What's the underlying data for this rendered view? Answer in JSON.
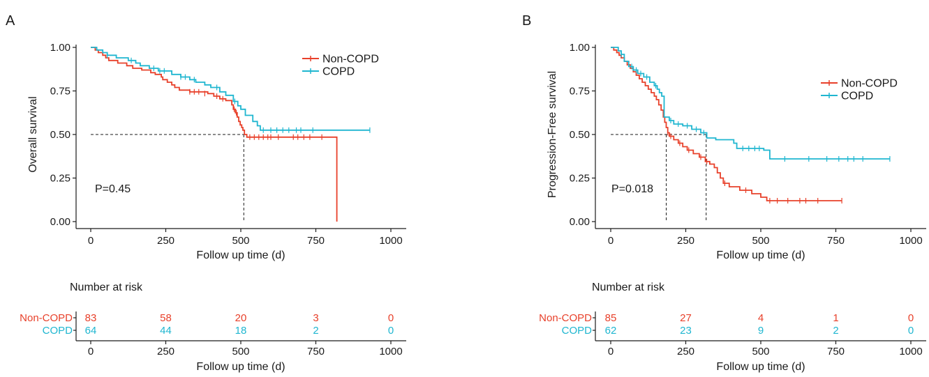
{
  "colors": {
    "non_copd": "#E8402A",
    "copd": "#1FB6D0",
    "axis": "#1a1a1a"
  },
  "chart_data": [
    {
      "type": "line",
      "subtype": "kaplan-meier",
      "panel_label": "A",
      "xlabel": "Follow up time (d)",
      "ylabel": "Overall survival",
      "xlim": [
        0,
        1000
      ],
      "ylim": [
        0,
        1
      ],
      "xticks": [
        "0",
        "250",
        "500",
        "750",
        "1000"
      ],
      "yticks": [
        "0.00",
        "0.25",
        "0.50",
        "0.75",
        "1.00"
      ],
      "grid": false,
      "legend_position": "top-right",
      "annotation": "P=0.45",
      "median_lines": [
        510
      ],
      "series": [
        {
          "name": "Non-COPD",
          "color": "#E8402A",
          "steps": [
            [
              0,
              1.0
            ],
            [
              15,
              0.985
            ],
            [
              25,
              0.97
            ],
            [
              40,
              0.955
            ],
            [
              50,
              0.94
            ],
            [
              60,
              0.925
            ],
            [
              90,
              0.91
            ],
            [
              120,
              0.895
            ],
            [
              140,
              0.88
            ],
            [
              170,
              0.87
            ],
            [
              200,
              0.855
            ],
            [
              215,
              0.845
            ],
            [
              235,
              0.83
            ],
            [
              240,
              0.815
            ],
            [
              255,
              0.8
            ],
            [
              270,
              0.785
            ],
            [
              280,
              0.77
            ],
            [
              295,
              0.755
            ],
            [
              330,
              0.745
            ],
            [
              390,
              0.735
            ],
            [
              410,
              0.72
            ],
            [
              430,
              0.705
            ],
            [
              450,
              0.695
            ],
            [
              470,
              0.67
            ],
            [
              475,
              0.645
            ],
            [
              482,
              0.625
            ],
            [
              488,
              0.6
            ],
            [
              493,
              0.575
            ],
            [
              498,
              0.555
            ],
            [
              503,
              0.54
            ],
            [
              507,
              0.525
            ],
            [
              512,
              0.5
            ],
            [
              520,
              0.485
            ],
            [
              820,
              0.485
            ],
            [
              820,
              0.0
            ]
          ],
          "censor": [
            [
              330,
              0.745
            ],
            [
              345,
              0.745
            ],
            [
              360,
              0.745
            ],
            [
              380,
              0.735
            ],
            [
              420,
              0.72
            ],
            [
              440,
              0.705
            ],
            [
              478,
              0.645
            ],
            [
              485,
              0.625
            ],
            [
              530,
              0.485
            ],
            [
              545,
              0.485
            ],
            [
              560,
              0.485
            ],
            [
              575,
              0.485
            ],
            [
              590,
              0.485
            ],
            [
              600,
              0.485
            ],
            [
              625,
              0.485
            ],
            [
              675,
              0.485
            ],
            [
              690,
              0.485
            ],
            [
              710,
              0.485
            ],
            [
              730,
              0.485
            ],
            [
              770,
              0.485
            ]
          ]
        },
        {
          "name": "COPD",
          "color": "#1FB6D0",
          "steps": [
            [
              0,
              1.0
            ],
            [
              20,
              0.985
            ],
            [
              40,
              0.97
            ],
            [
              55,
              0.955
            ],
            [
              85,
              0.94
            ],
            [
              125,
              0.925
            ],
            [
              150,
              0.91
            ],
            [
              165,
              0.895
            ],
            [
              195,
              0.88
            ],
            [
              225,
              0.865
            ],
            [
              270,
              0.845
            ],
            [
              300,
              0.83
            ],
            [
              330,
              0.815
            ],
            [
              350,
              0.8
            ],
            [
              380,
              0.785
            ],
            [
              400,
              0.77
            ],
            [
              430,
              0.745
            ],
            [
              450,
              0.725
            ],
            [
              475,
              0.69
            ],
            [
              490,
              0.665
            ],
            [
              500,
              0.645
            ],
            [
              515,
              0.61
            ],
            [
              540,
              0.575
            ],
            [
              555,
              0.55
            ],
            [
              565,
              0.525
            ],
            [
              930,
              0.525
            ]
          ],
          "censor": [
            [
              55,
              0.955
            ],
            [
              135,
              0.925
            ],
            [
              210,
              0.88
            ],
            [
              230,
              0.865
            ],
            [
              245,
              0.865
            ],
            [
              300,
              0.83
            ],
            [
              315,
              0.83
            ],
            [
              345,
              0.815
            ],
            [
              420,
              0.77
            ],
            [
              480,
              0.69
            ],
            [
              575,
              0.525
            ],
            [
              600,
              0.525
            ],
            [
              620,
              0.525
            ],
            [
              640,
              0.525
            ],
            [
              660,
              0.525
            ],
            [
              685,
              0.525
            ],
            [
              700,
              0.525
            ],
            [
              740,
              0.525
            ],
            [
              930,
              0.525
            ]
          ]
        }
      ],
      "risk_table": {
        "title": "Number at risk",
        "xlabel": "Follow up time (d)",
        "times": [
          "0",
          "250",
          "500",
          "750",
          "1000"
        ],
        "rows": [
          {
            "label": "Non-COPD",
            "values": [
              "83",
              "58",
              "20",
              "3",
              "0"
            ]
          },
          {
            "label": "COPD",
            "values": [
              "64",
              "44",
              "18",
              "2",
              "0"
            ]
          }
        ]
      }
    },
    {
      "type": "line",
      "subtype": "kaplan-meier",
      "panel_label": "B",
      "xlabel": "Follow up time (d)",
      "ylabel": "Progression-Free survival",
      "xlim": [
        0,
        1000
      ],
      "ylim": [
        0,
        1
      ],
      "xticks": [
        "0",
        "250",
        "500",
        "750",
        "1000"
      ],
      "yticks": [
        "0.00",
        "0.25",
        "0.50",
        "0.75",
        "1.00"
      ],
      "grid": false,
      "legend_position": "top-right",
      "annotation": "P=0.018",
      "median_lines": [
        185,
        318
      ],
      "series": [
        {
          "name": "Non-COPD",
          "color": "#E8402A",
          "steps": [
            [
              0,
              1.0
            ],
            [
              10,
              0.985
            ],
            [
              20,
              0.97
            ],
            [
              28,
              0.955
            ],
            [
              35,
              0.94
            ],
            [
              45,
              0.92
            ],
            [
              55,
              0.9
            ],
            [
              65,
              0.88
            ],
            [
              75,
              0.86
            ],
            [
              85,
              0.84
            ],
            [
              95,
              0.82
            ],
            [
              105,
              0.8
            ],
            [
              115,
              0.78
            ],
            [
              125,
              0.76
            ],
            [
              135,
              0.74
            ],
            [
              145,
              0.72
            ],
            [
              152,
              0.7
            ],
            [
              160,
              0.67
            ],
            [
              168,
              0.64
            ],
            [
              175,
              0.6
            ],
            [
              180,
              0.57
            ],
            [
              185,
              0.54
            ],
            [
              190,
              0.51
            ],
            [
              195,
              0.49
            ],
            [
              210,
              0.47
            ],
            [
              225,
              0.45
            ],
            [
              240,
              0.43
            ],
            [
              255,
              0.41
            ],
            [
              275,
              0.39
            ],
            [
              295,
              0.37
            ],
            [
              315,
              0.345
            ],
            [
              330,
              0.33
            ],
            [
              345,
              0.31
            ],
            [
              355,
              0.28
            ],
            [
              365,
              0.25
            ],
            [
              375,
              0.22
            ],
            [
              395,
              0.2
            ],
            [
              430,
              0.18
            ],
            [
              470,
              0.16
            ],
            [
              500,
              0.14
            ],
            [
              520,
              0.12
            ],
            [
              770,
              0.12
            ]
          ],
          "censor": [
            [
              190,
              0.51
            ],
            [
              200,
              0.49
            ],
            [
              230,
              0.45
            ],
            [
              260,
              0.41
            ],
            [
              300,
              0.37
            ],
            [
              320,
              0.345
            ],
            [
              380,
              0.22
            ],
            [
              450,
              0.18
            ],
            [
              530,
              0.12
            ],
            [
              555,
              0.12
            ],
            [
              590,
              0.12
            ],
            [
              630,
              0.12
            ],
            [
              650,
              0.12
            ],
            [
              690,
              0.12
            ],
            [
              770,
              0.12
            ]
          ]
        },
        {
          "name": "COPD",
          "color": "#1FB6D0",
          "steps": [
            [
              0,
              1.0
            ],
            [
              25,
              0.98
            ],
            [
              35,
              0.96
            ],
            [
              45,
              0.92
            ],
            [
              60,
              0.89
            ],
            [
              75,
              0.87
            ],
            [
              90,
              0.85
            ],
            [
              110,
              0.83
            ],
            [
              130,
              0.8
            ],
            [
              145,
              0.78
            ],
            [
              155,
              0.76
            ],
            [
              162,
              0.74
            ],
            [
              170,
              0.72
            ],
            [
              178,
              0.6
            ],
            [
              195,
              0.58
            ],
            [
              210,
              0.56
            ],
            [
              240,
              0.55
            ],
            [
              270,
              0.53
            ],
            [
              300,
              0.51
            ],
            [
              320,
              0.48
            ],
            [
              350,
              0.47
            ],
            [
              410,
              0.45
            ],
            [
              420,
              0.42
            ],
            [
              510,
              0.41
            ],
            [
              530,
              0.36
            ],
            [
              930,
              0.36
            ]
          ],
          "censor": [
            [
              35,
              0.96
            ],
            [
              70,
              0.89
            ],
            [
              85,
              0.87
            ],
            [
              100,
              0.85
            ],
            [
              120,
              0.83
            ],
            [
              150,
              0.78
            ],
            [
              200,
              0.58
            ],
            [
              225,
              0.56
            ],
            [
              255,
              0.55
            ],
            [
              285,
              0.53
            ],
            [
              310,
              0.51
            ],
            [
              440,
              0.42
            ],
            [
              460,
              0.42
            ],
            [
              480,
              0.42
            ],
            [
              495,
              0.42
            ],
            [
              580,
              0.36
            ],
            [
              660,
              0.36
            ],
            [
              720,
              0.36
            ],
            [
              760,
              0.36
            ],
            [
              790,
              0.36
            ],
            [
              810,
              0.36
            ],
            [
              840,
              0.36
            ],
            [
              930,
              0.36
            ]
          ]
        }
      ],
      "risk_table": {
        "title": "Number at risk",
        "xlabel": "Follow up time (d)",
        "times": [
          "0",
          "250",
          "500",
          "750",
          "1000"
        ],
        "rows": [
          {
            "label": "Non-COPD",
            "values": [
              "85",
              "27",
              "4",
              "1",
              "0"
            ]
          },
          {
            "label": "COPD",
            "values": [
              "62",
              "23",
              "9",
              "2",
              "0"
            ]
          }
        ]
      }
    }
  ]
}
